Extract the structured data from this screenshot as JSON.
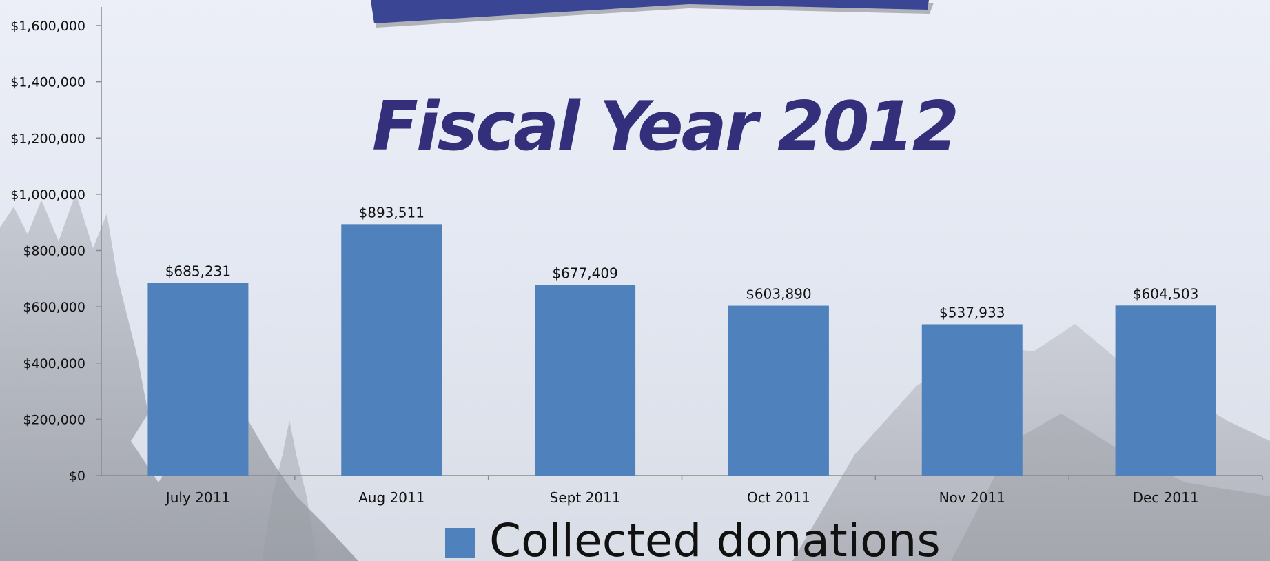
{
  "chart_data": {
    "type": "bar",
    "title": "Fiscal Year 2012",
    "categories": [
      "July 2011",
      "Aug 2011",
      "Sept 2011",
      "Oct 2011",
      "Nov 2011",
      "Dec 2011"
    ],
    "series": [
      {
        "name": "Collected donations",
        "values": [
          685231,
          893511,
          677409,
          603890,
          537933,
          604503
        ],
        "labels": [
          "$685,231",
          "$893,511",
          "$677,409",
          "$603,890",
          "$537,933",
          "$604,503"
        ],
        "color": "#4f81bd"
      }
    ],
    "y_ticks": [
      0,
      200000,
      400000,
      600000,
      800000,
      1000000,
      1200000,
      1400000,
      1600000
    ],
    "y_tick_labels": [
      "$0",
      "$200,000",
      "$400,000",
      "$600,000",
      "$800,000",
      "$1,000,000",
      "$1,200,000",
      "$1,400,000",
      "$1,600,000"
    ],
    "ylim": [
      0,
      1600000
    ],
    "xlabel": "",
    "ylabel": "",
    "grid": false,
    "legend": "bottom",
    "banner_color": "#3a4594",
    "title_color": "#342f7a"
  }
}
